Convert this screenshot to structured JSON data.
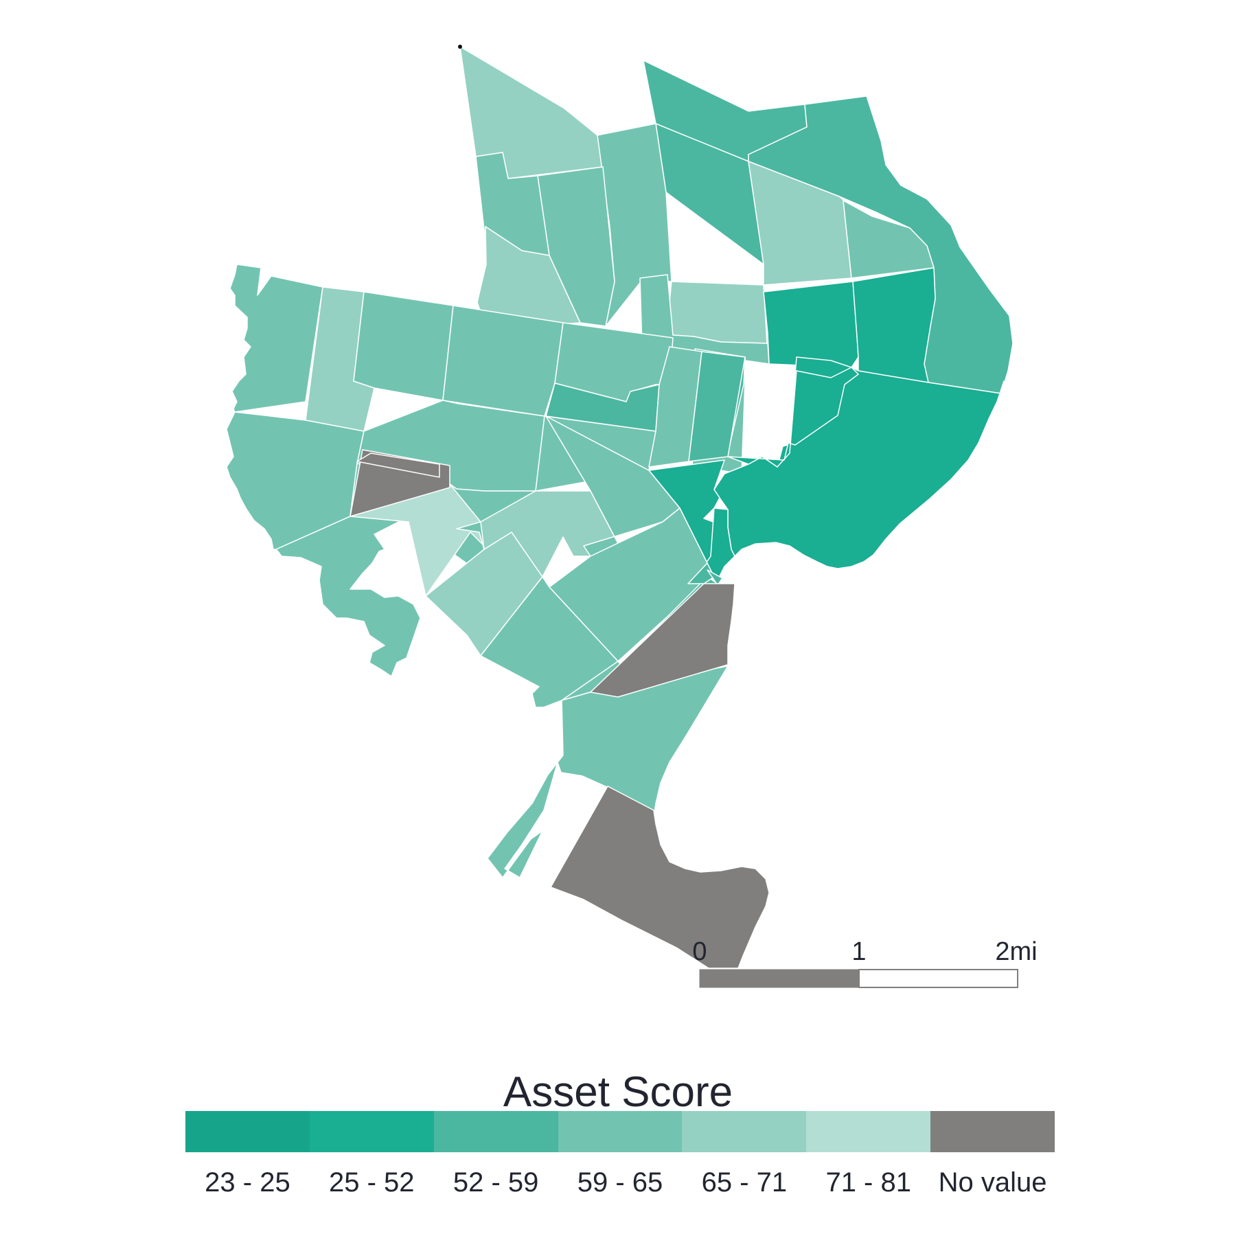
{
  "legend": {
    "title": "Asset Score",
    "classes": [
      {
        "label": "23 - 25",
        "color": "#16a58a"
      },
      {
        "label": "25 - 52",
        "color": "#1aae93"
      },
      {
        "label": "52 - 59",
        "color": "#4bb7a0"
      },
      {
        "label": "59 - 65",
        "color": "#72c4b1"
      },
      {
        "label": "65 - 71",
        "color": "#94d1c2"
      },
      {
        "label": "71 - 81",
        "color": "#b3ded4"
      },
      {
        "label": "No value",
        "color": "#807f7d"
      }
    ]
  },
  "scale_bar": {
    "ticks": [
      "0",
      "1",
      "2mi"
    ],
    "fill_color": "#807f7d"
  },
  "regions": [
    {
      "class": 4
    },
    {
      "class": 3
    },
    {
      "class": 2
    },
    {
      "class": 2
    },
    {
      "class": 2
    },
    {
      "class": 3
    },
    {
      "class": 4
    },
    {
      "class": 3
    },
    {
      "class": 4
    },
    {
      "class": 3
    },
    {
      "class": 4
    },
    {
      "class": 1
    },
    {
      "class": 1
    },
    {
      "class": 3
    },
    {
      "class": 3
    },
    {
      "class": 2
    },
    {
      "class": 3
    },
    {
      "class": 4
    },
    {
      "class": 3
    },
    {
      "class": 3
    },
    {
      "class": 3
    },
    {
      "class": 3
    },
    {
      "class": 2
    },
    {
      "class": 3
    },
    {
      "class": 3
    },
    {
      "class": 3
    },
    {
      "class": 2
    },
    {
      "class": 1
    },
    {
      "class": 1
    },
    {
      "class": 1
    },
    {
      "class": 1
    },
    {
      "class": 3
    },
    {
      "class": 5
    },
    {
      "class": 4
    },
    {
      "class": 4
    },
    {
      "class": 3
    },
    {
      "class": 3
    },
    {
      "class": 3
    },
    {
      "class": 3
    },
    {
      "class": 2
    },
    {
      "class": 3
    },
    {
      "class": 6
    },
    {
      "class": 2
    },
    {
      "class": 2
    },
    {
      "class": 6
    }
  ]
}
